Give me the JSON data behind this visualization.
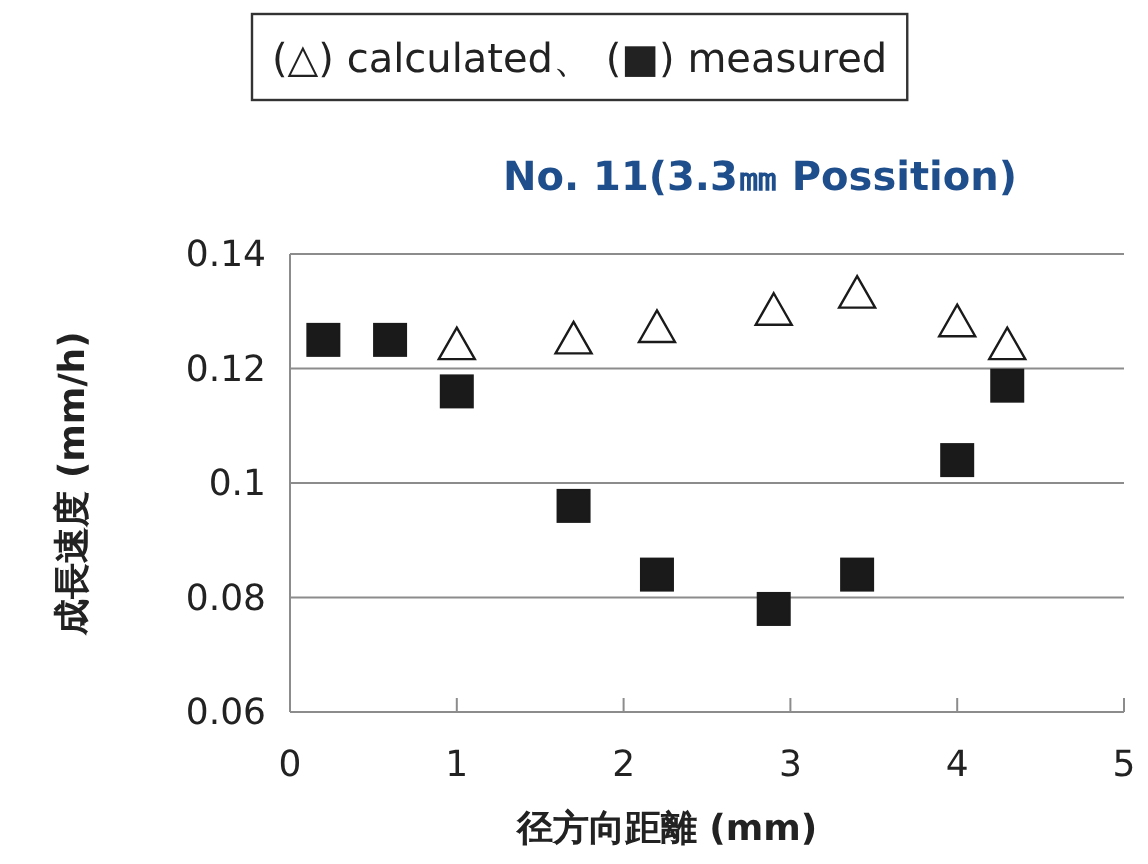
{
  "chart_data": {
    "type": "scatter",
    "title": "No. 11(3.3㎜ Possition)",
    "xlabel": "径方向距離 (mm)",
    "ylabel": "成長速度 (mm/h)",
    "series": [
      {
        "color": "#ffffff",
        "marker": "triangle",
        "x": [
          1.0,
          1.7,
          2.2,
          2.9,
          3.4,
          4.0,
          4.3
        ],
        "values": [
          0.124,
          0.125,
          0.127,
          0.13,
          0.133,
          0.128,
          0.124
        ]
      },
      {
        "color": "#1a1a1a",
        "marker": "square",
        "x": [
          0.2,
          0.6,
          1.0,
          1.7,
          2.2,
          2.9,
          3.4,
          4.0,
          4.3
        ],
        "values": [
          0.125,
          0.125,
          0.116,
          0.096,
          0.084,
          0.078,
          0.084,
          0.104,
          0.117
        ]
      }
    ],
    "xlim": [
      0,
      5
    ],
    "xticks": [
      0,
      1,
      2,
      3,
      4,
      5
    ],
    "ylim": [
      0.06,
      0.14
    ],
    "yticks": [
      0.06,
      0.08,
      0.1,
      0.12,
      0.14
    ],
    "grid": "y",
    "annotations": [
      "(△) calculated、 (■) measured"
    ]
  }
}
